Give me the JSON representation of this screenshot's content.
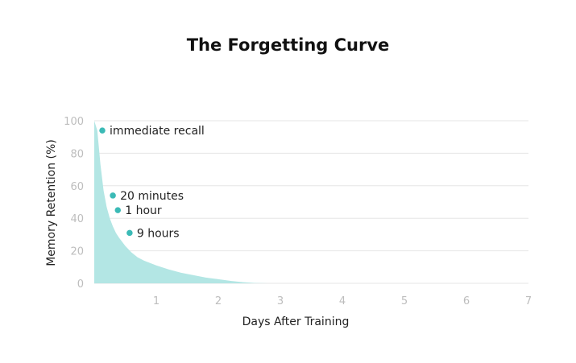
{
  "chart_data": {
    "type": "area",
    "title": "The Forgetting Curve",
    "xlabel": "Days After Training",
    "ylabel": "Memory Retention (%)",
    "xlim": [
      0,
      7
    ],
    "ylim": [
      0,
      100
    ],
    "xticks": [
      1,
      2,
      3,
      4,
      5,
      6,
      7
    ],
    "yticks": [
      0,
      20,
      40,
      60,
      80,
      100
    ],
    "grid": true,
    "fill_color": "#b3e6e4",
    "marker_color": "#3bbab6",
    "series": [
      {
        "x": [
          0,
          0.05,
          0.1,
          0.15,
          0.2,
          0.25,
          0.3,
          0.35,
          0.4,
          0.5,
          0.6,
          0.7,
          0.8,
          1.0,
          1.2,
          1.4,
          1.6,
          1.8,
          2.0,
          2.2,
          2.4,
          2.6,
          2.8,
          3.0,
          7.0
        ],
        "values": [
          100,
          94,
          73,
          57,
          47,
          40,
          35,
          31,
          28,
          23,
          19,
          16,
          14,
          11,
          8.5,
          6.5,
          5,
          3.5,
          2.5,
          1.5,
          0.7,
          0.2,
          0,
          0,
          0
        ]
      }
    ],
    "annotations": [
      {
        "label": "immediate recall",
        "x": 0.13,
        "y": 94
      },
      {
        "label": "20 minutes",
        "x": 0.3,
        "y": 54
      },
      {
        "label": "1 hour",
        "x": 0.38,
        "y": 45
      },
      {
        "label": "9 hours",
        "x": 0.57,
        "y": 31
      }
    ]
  }
}
